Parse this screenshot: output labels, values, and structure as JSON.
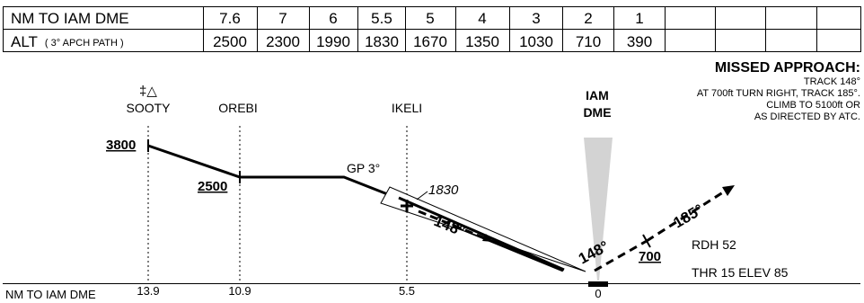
{
  "table": {
    "row1_label": "NM TO IAM DME",
    "row2_label_main": "ALT",
    "row2_label_sub": "( 3° APCH PATH )",
    "distances": [
      "7.6",
      "7",
      "6",
      "5.5",
      "5",
      "4",
      "3",
      "2",
      "1"
    ],
    "altitudes": [
      "2500",
      "2300",
      "1990",
      "1830",
      "1670",
      "1350",
      "1030",
      "710",
      "390"
    ]
  },
  "missed_approach": {
    "title": "MISSED APPROACH:",
    "lines": [
      "TRACK 148°",
      "AT 700ft TURN RIGHT, TRACK 185°.",
      "CLIMB TO 5100ft OR",
      "AS DIRECTED BY ATC."
    ]
  },
  "fixes": {
    "sooty_symbol": "‡△",
    "sooty": "SOOTY",
    "orebi": "OREBI",
    "ikeli": "IKELI",
    "dme_line1": "IAM",
    "dme_line2": "DME"
  },
  "labels": {
    "alt_3800": "3800",
    "alt_2500": "2500",
    "gp": "GP 3°",
    "alt_1830": "1830",
    "track_148_a": "148°",
    "track_148_b": "148°",
    "track_185": "185°",
    "turn_alt": "700",
    "rdh": "RDH 52",
    "thr": "THR 15 ELEV 85"
  },
  "axis": {
    "label": "NM TO IAM DME",
    "ticks": [
      "13.9",
      "10.9",
      "5.5",
      "0"
    ]
  }
}
